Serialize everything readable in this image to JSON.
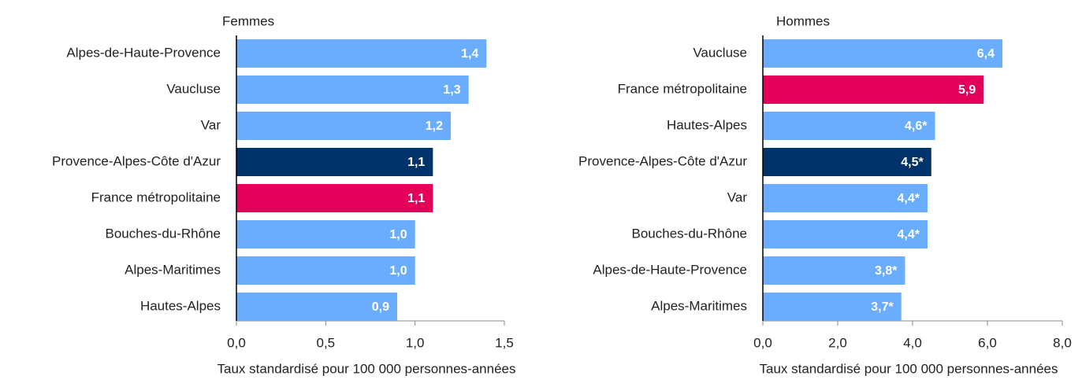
{
  "chart_data": [
    {
      "type": "barh",
      "title": "Femmes",
      "x_label": "Taux standardisé pour 100 000 personnes-années",
      "categories": [
        "Alpes-de-Haute-Provence",
        "Vaucluse",
        "Var",
        "Provence-Alpes-Côte d'Azur",
        "France métropolitaine",
        "Bouches-du-Rhône",
        "Alpes-Maritimes",
        "Hautes-Alpes"
      ],
      "values": [
        1.4,
        1.3,
        1.2,
        1.1,
        1.1,
        1.0,
        1.0,
        0.9
      ],
      "value_labels": [
        "1,4",
        "1,3",
        "1,2",
        "1,1",
        "1,1",
        "1,0",
        "1,0",
        "0,9"
      ],
      "colors": [
        "#6aadff",
        "#6aadff",
        "#6aadff",
        "#00336a",
        "#e4005a",
        "#6aadff",
        "#6aadff",
        "#6aadff"
      ],
      "xlim": [
        0,
        1.5
      ],
      "xticks": [
        {
          "value": 0,
          "label": "0,0"
        },
        {
          "value": 0.5,
          "label": "0,5"
        },
        {
          "value": 1.0,
          "label": "1,0"
        },
        {
          "value": 1.5,
          "label": "1,5"
        }
      ]
    },
    {
      "type": "barh",
      "title": "Hommes",
      "x_label": "Taux standardisé pour 100 000 personnes-années",
      "categories": [
        "Vaucluse",
        "France métropolitaine",
        "Hautes-Alpes",
        "Provence-Alpes-Côte d'Azur",
        "Var",
        "Bouches-du-Rhône",
        "Alpes-de-Haute-Provence",
        "Alpes-Maritimes"
      ],
      "values": [
        6.4,
        5.9,
        4.6,
        4.5,
        4.4,
        4.4,
        3.8,
        3.7
      ],
      "value_labels": [
        "6,4",
        "5,9",
        "4,6*",
        "4,5*",
        "4,4*",
        "4,4*",
        "3,8*",
        "3,7*"
      ],
      "colors": [
        "#6aadff",
        "#e4005a",
        "#6aadff",
        "#00336a",
        "#6aadff",
        "#6aadff",
        "#6aadff",
        "#6aadff"
      ],
      "xlim": [
        0,
        8
      ],
      "xticks": [
        {
          "value": 0,
          "label": "0,0"
        },
        {
          "value": 2,
          "label": "2,0"
        },
        {
          "value": 4,
          "label": "4,0"
        },
        {
          "value": 6,
          "label": "6,0"
        },
        {
          "value": 8,
          "label": "8,0"
        }
      ]
    }
  ]
}
